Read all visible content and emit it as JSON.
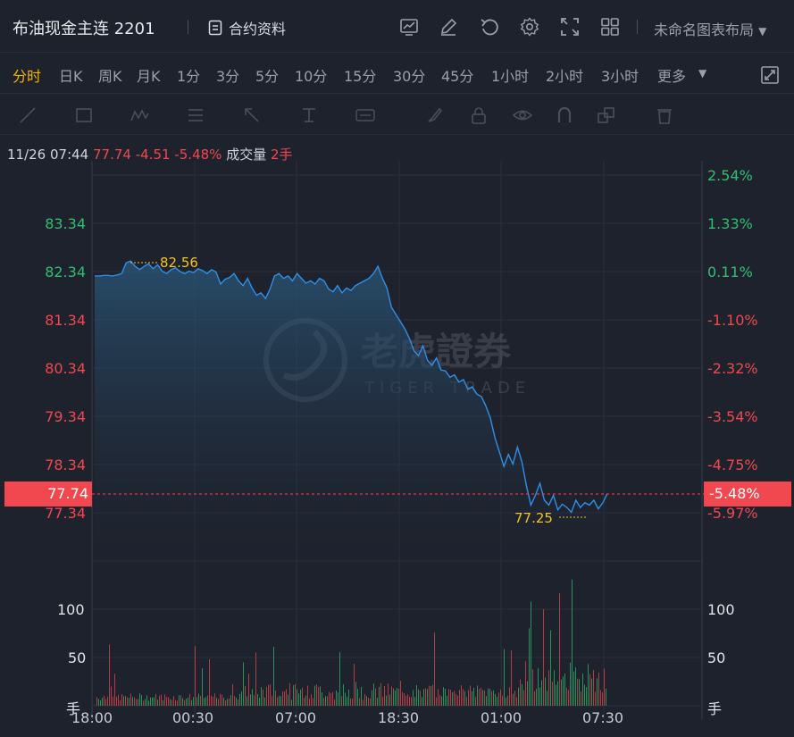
{
  "header": {
    "title": "布油现金主连 2201",
    "contract_label": "合约资料",
    "layout_label": "未命名图表布局"
  },
  "timeframes": [
    {
      "label": "分时",
      "active": true
    },
    {
      "label": "日K",
      "active": false
    },
    {
      "label": "周K",
      "active": false
    },
    {
      "label": "月K",
      "active": false
    },
    {
      "label": "1分",
      "active": false
    },
    {
      "label": "3分",
      "active": false
    },
    {
      "label": "5分",
      "active": false
    },
    {
      "label": "10分",
      "active": false
    },
    {
      "label": "15分",
      "active": false
    },
    {
      "label": "30分",
      "active": false
    },
    {
      "label": "45分",
      "active": false
    },
    {
      "label": "1小时",
      "active": false
    },
    {
      "label": "2小时",
      "active": false
    },
    {
      "label": "3小时",
      "active": false
    },
    {
      "label": "更多",
      "active": false
    }
  ],
  "info": {
    "datetime": "11/26 07:44",
    "price": "77.74",
    "change": "-4.51",
    "change_pct": "-5.48%",
    "volume_label": "成交量",
    "volume": "2手"
  },
  "chart_data": {
    "type": "line",
    "price_ticks_left": [
      "83.34",
      "82.34",
      "81.34",
      "80.34",
      "79.34",
      "78.34",
      "77.34"
    ],
    "pct_ticks_right": [
      "2.54%",
      "1.33%",
      "0.11%",
      "-1.10%",
      "-2.32%",
      "-3.54%",
      "-4.75%",
      "-5.97%"
    ],
    "last_price_tag": "77.74",
    "last_pct_tag": "-5.48%",
    "high_marker": "82.56",
    "low_marker": "77.25",
    "x_ticks": [
      "18:00",
      "00:30",
      "07:00",
      "18:30",
      "01:00",
      "07:30"
    ],
    "volume_ticks_left": [
      "100",
      "50",
      "手"
    ],
    "volume_ticks_right": [
      "100",
      "50",
      "手"
    ],
    "watermark": "老虎證券",
    "watermark_sub": "TIGER TRADE",
    "colors": {
      "line": "#2f8fe8",
      "up": "#2fbf71",
      "down": "#f0484e",
      "marker": "#f5c518"
    },
    "series": [
      {
        "values": [
          82.25,
          82.25,
          82.26,
          82.26,
          82.25,
          82.27,
          82.3,
          82.52,
          82.56,
          82.45,
          82.38,
          82.45,
          82.5,
          82.4,
          82.48,
          82.35,
          82.3,
          82.38,
          82.42,
          82.34,
          82.3,
          82.35,
          82.32,
          82.4,
          82.36,
          82.3,
          82.38,
          82.33,
          82.08,
          82.18,
          82.22,
          82.3,
          82.15,
          82.05,
          82.2,
          82.0,
          81.85,
          81.9,
          81.78,
          81.98,
          82.25,
          82.3,
          82.2,
          82.25,
          82.15,
          82.3,
          82.2,
          82.1,
          82.15,
          82.08,
          82.2,
          82.15,
          81.98,
          81.92,
          82.05,
          81.9,
          82.0,
          81.95,
          82.05,
          82.1,
          82.15,
          82.2,
          82.3,
          82.45,
          82.2,
          82.0,
          81.6,
          81.45,
          81.3,
          81.15,
          80.95,
          80.7,
          80.6,
          80.8,
          80.5,
          80.4,
          80.55,
          80.3,
          80.28,
          80.15,
          80.2,
          80.05,
          80.1,
          79.9,
          79.95,
          79.8,
          79.75,
          79.55,
          79.3,
          78.9,
          78.6,
          78.3,
          78.55,
          78.35,
          78.7,
          78.4,
          77.9,
          77.5,
          77.7,
          77.95,
          77.6,
          77.5,
          77.7,
          77.4,
          77.52,
          77.45,
          77.35,
          77.6,
          77.45,
          77.55,
          77.5,
          77.6,
          77.42,
          77.55,
          77.74
        ]
      }
    ]
  }
}
